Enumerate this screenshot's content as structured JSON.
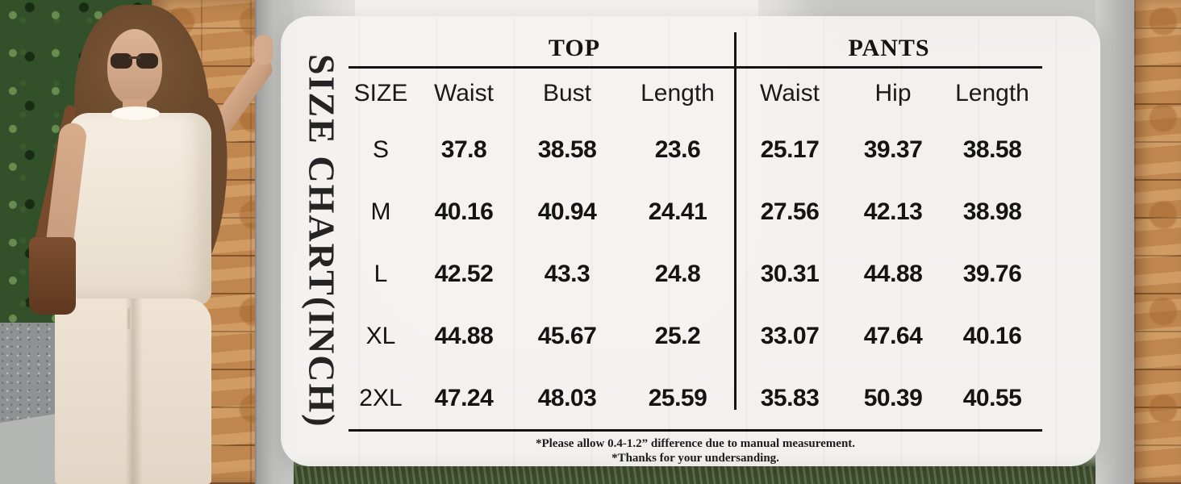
{
  "panel": {
    "title": "SIZE CHART(INCH)"
  },
  "table": {
    "size_header": "SIZE",
    "groups": [
      {
        "label": "TOP",
        "columns": [
          "Waist",
          "Bust",
          "Length"
        ]
      },
      {
        "label": "PANTS",
        "columns": [
          "Waist",
          "Hip",
          "Length"
        ]
      }
    ],
    "rows": [
      {
        "size": "S",
        "top": [
          "37.8",
          "38.58",
          "23.6"
        ],
        "pants": [
          "25.17",
          "39.37",
          "38.58"
        ]
      },
      {
        "size": "M",
        "top": [
          "40.16",
          "40.94",
          "24.41"
        ],
        "pants": [
          "27.56",
          "42.13",
          "38.98"
        ]
      },
      {
        "size": "L",
        "top": [
          "42.52",
          "43.3",
          "24.8"
        ],
        "pants": [
          "30.31",
          "44.88",
          "39.76"
        ]
      },
      {
        "size": "XL",
        "top": [
          "44.88",
          "45.67",
          "25.2"
        ],
        "pants": [
          "33.07",
          "47.64",
          "40.16"
        ]
      },
      {
        "size": "2XL",
        "top": [
          "47.24",
          "48.03",
          "25.59"
        ],
        "pants": [
          "35.83",
          "50.39",
          "40.55"
        ]
      }
    ],
    "notes": [
      "*Please allow 0.4-1.2”  difference due to manual measurement.",
      "*Thanks for your undersanding."
    ]
  },
  "photo": {
    "description": "Model in beige knit cap-sleeve top and matching wide-leg pants with brown shoulder bag, leaning on a tan stacked-stone wall beside greenery"
  },
  "colors": {
    "panel_bg": "#f3f2f0",
    "table_line": "#141414",
    "text": "#161616",
    "stone_wall": "#bf874f",
    "foliage": "#32502a",
    "outfit": "#ece1d2",
    "bag": "#6e4329",
    "grass": "#47553a"
  }
}
